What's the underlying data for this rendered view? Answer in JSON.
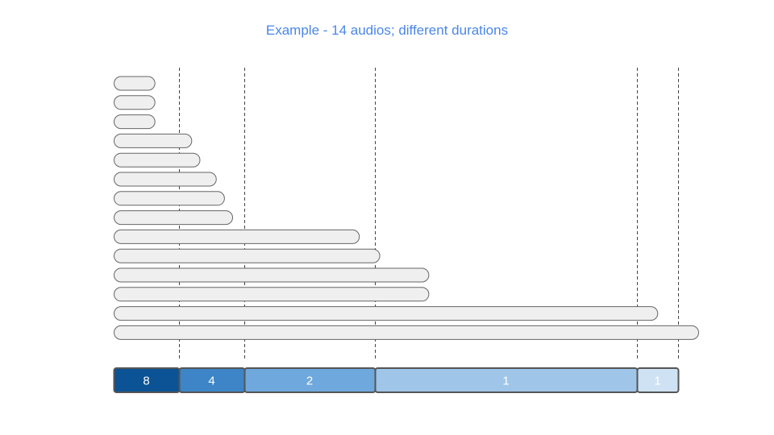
{
  "title": "Example - 14 audios; different durations",
  "audio_count": 14,
  "audio_durations": [
    1.0,
    1.0,
    1.0,
    1.9,
    2.1,
    2.5,
    2.7,
    2.9,
    6.0,
    6.5,
    7.7,
    7.7,
    13.3,
    14.3
  ],
  "bucket_boundaries": [
    1.6,
    3.2,
    6.4,
    12.8,
    13.8
  ],
  "buckets": [
    {
      "label": "8",
      "color": "#0b5394",
      "text_color": "#ffffff"
    },
    {
      "label": "4",
      "color": "#3d85c6",
      "text_color": "#ffffff"
    },
    {
      "label": "2",
      "color": "#6fa8dc",
      "text_color": "#ffffff"
    },
    {
      "label": "1",
      "color": "#9fc5e8",
      "text_color": "#ffffff"
    },
    {
      "label": "1",
      "color": "#cfe2f3",
      "text_color": "#ffffff"
    }
  ],
  "colors": {
    "pill_fill": "#efefef",
    "pill_stroke": "#666666",
    "title": "#4a86e8",
    "bar_border": "#555555"
  }
}
